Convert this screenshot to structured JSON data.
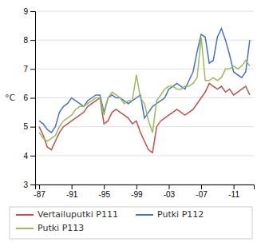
{
  "chart_data": {
    "type": "line",
    "y_label": "°C",
    "categories": [
      "-87",
      null,
      null,
      null,
      null,
      null,
      null,
      null,
      "-91",
      null,
      null,
      null,
      null,
      null,
      null,
      null,
      "-95",
      null,
      null,
      null,
      null,
      null,
      null,
      null,
      "-99",
      null,
      null,
      null,
      null,
      null,
      null,
      null,
      "-03",
      null,
      null,
      null,
      null,
      null,
      null,
      null,
      "-07",
      null,
      null,
      null,
      null,
      null,
      null,
      null,
      "-11",
      null,
      null,
      null,
      null
    ],
    "series": [
      {
        "name": "Vertailuputki P111",
        "color": "#c0504d",
        "values": [
          5.0,
          4.7,
          4.3,
          4.2,
          4.5,
          4.8,
          5.0,
          5.1,
          5.2,
          5.3,
          5.4,
          5.5,
          5.7,
          5.8,
          5.9,
          6.0,
          5.1,
          5.2,
          5.5,
          5.6,
          5.5,
          5.4,
          5.3,
          5.1,
          5.2,
          4.8,
          4.5,
          4.2,
          4.1,
          5.0,
          5.2,
          5.3,
          5.4,
          5.5,
          5.6,
          5.5,
          5.4,
          5.5,
          5.6,
          5.8,
          6.0,
          6.2,
          6.5,
          6.4,
          6.3,
          6.4,
          6.2,
          6.3,
          6.1,
          6.2,
          6.3,
          6.4,
          6.1
        ]
      },
      {
        "name": "Putki P112",
        "color": "#4472c4",
        "values": [
          5.2,
          5.1,
          4.9,
          4.8,
          5.0,
          5.5,
          5.7,
          5.8,
          6.0,
          5.9,
          5.8,
          5.7,
          5.9,
          6.0,
          6.1,
          6.1,
          5.5,
          6.0,
          6.1,
          6.0,
          6.0,
          5.9,
          5.8,
          5.9,
          6.0,
          6.1,
          5.3,
          5.5,
          5.7,
          5.8,
          5.9,
          6.0,
          6.3,
          6.4,
          6.5,
          6.4,
          6.3,
          6.6,
          6.9,
          7.6,
          8.2,
          8.1,
          7.2,
          7.3,
          8.1,
          8.4,
          8.0,
          7.5,
          6.9,
          6.8,
          6.7,
          6.9,
          8.0
        ]
      },
      {
        "name": "Putki P113",
        "color": "#9bbb59",
        "values": [
          4.8,
          4.6,
          4.5,
          4.6,
          4.7,
          5.0,
          5.2,
          5.3,
          5.4,
          5.6,
          5.7,
          5.7,
          5.8,
          5.9,
          6.0,
          6.0,
          5.4,
          6.0,
          6.2,
          6.1,
          6.0,
          5.8,
          5.9,
          5.9,
          6.8,
          6.0,
          5.8,
          5.2,
          4.8,
          5.9,
          6.1,
          6.3,
          6.4,
          6.4,
          6.3,
          6.3,
          6.4,
          6.4,
          6.5,
          6.7,
          8.1,
          6.6,
          6.6,
          6.7,
          6.6,
          6.7,
          7.0,
          7.0,
          7.1,
          7.0,
          7.1,
          7.3,
          7.1
        ]
      }
    ],
    "ylim": [
      3,
      9
    ],
    "yticks": [
      3,
      4,
      5,
      6,
      7,
      8,
      9
    ],
    "grid": true,
    "legend": "bottom"
  }
}
